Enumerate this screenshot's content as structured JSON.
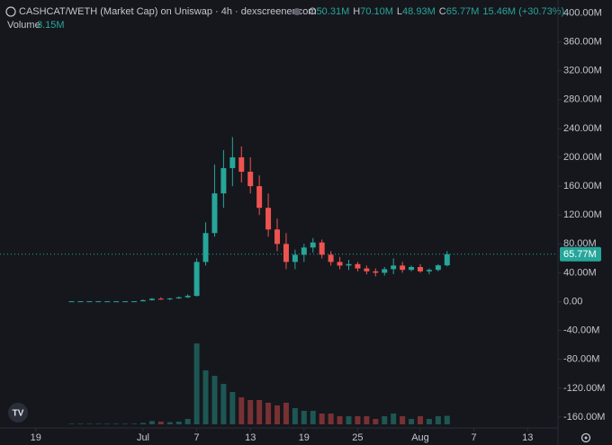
{
  "chart_data": {
    "type": "candlestick",
    "title": "CASHCAT/WETH (Market Cap) on Uniswap · 4h · dexscreener.com",
    "ohlc_header": [
      {
        "label": "O",
        "value": "50.31M"
      },
      {
        "label": "H",
        "value": "70.10M"
      },
      {
        "label": "L",
        "value": "48.93M"
      },
      {
        "label": "C",
        "value": "65.77M"
      }
    ],
    "change_label": "15.46M (+30.73%)",
    "volume_title": "Volume",
    "volume_label": "3.15M",
    "up_color": "#26a69a",
    "down_color": "#ef5350",
    "x": [
      23,
      24,
      25,
      26,
      27,
      28,
      29,
      30,
      31,
      32,
      33,
      34,
      35,
      36,
      37,
      38,
      39,
      40,
      41,
      42,
      43,
      44,
      45,
      46,
      47,
      48,
      49,
      50,
      51,
      52,
      53,
      54,
      55,
      56,
      57,
      58,
      59,
      60,
      61,
      62,
      63,
      64,
      65
    ],
    "open": [
      0.5,
      0.5,
      0.5,
      0.5,
      0.5,
      0.5,
      0.5,
      0.5,
      0.5,
      2,
      4,
      3.5,
      4.5,
      6,
      8,
      55,
      95,
      150,
      185,
      200,
      180,
      160,
      130,
      100,
      80,
      55,
      65,
      75,
      82,
      65,
      55,
      50,
      52,
      46,
      42,
      40,
      45,
      50,
      44,
      48,
      42,
      44,
      50.31
    ],
    "high": [
      0.6,
      0.6,
      0.6,
      0.6,
      0.6,
      0.6,
      0.6,
      0.6,
      3,
      5,
      6,
      5,
      7,
      10,
      60,
      110,
      190,
      210,
      228,
      215,
      200,
      175,
      150,
      115,
      95,
      72,
      80,
      88,
      86,
      70,
      62,
      58,
      55,
      50,
      46,
      48,
      60,
      55,
      50,
      52,
      46,
      52,
      70.1
    ],
    "low": [
      0.4,
      0.4,
      0.4,
      0.4,
      0.4,
      0.4,
      0.4,
      0.4,
      0.4,
      1.5,
      3,
      2,
      4,
      5,
      7,
      50,
      90,
      130,
      160,
      165,
      150,
      120,
      90,
      70,
      45,
      45,
      55,
      68,
      60,
      50,
      45,
      44,
      42,
      38,
      35,
      36,
      38,
      40,
      42,
      40,
      38,
      42,
      48.93
    ],
    "close": [
      0.5,
      0.5,
      0.5,
      0.5,
      0.5,
      0.5,
      0.5,
      0.5,
      2,
      4,
      3.5,
      4.5,
      6,
      8,
      55,
      95,
      150,
      185,
      200,
      180,
      160,
      130,
      100,
      80,
      55,
      65,
      75,
      82,
      65,
      55,
      50,
      52,
      46,
      42,
      40,
      45,
      50,
      44,
      48,
      42,
      44,
      50.31,
      65.77
    ],
    "volume": [
      0.2,
      0.2,
      0.2,
      0.2,
      0.2,
      0.2,
      0.2,
      0.2,
      0.5,
      1.2,
      1,
      0.8,
      1,
      2,
      30,
      20,
      18,
      15,
      12,
      10,
      9,
      9,
      8,
      7,
      8,
      6,
      5,
      5,
      4,
      4,
      3,
      3,
      3,
      3,
      2,
      3,
      4,
      3,
      2,
      3,
      2,
      3,
      3.15
    ],
    "volume_lim": [
      0,
      40
    ],
    "last_price": 65.77,
    "last_price_label": "65.77M",
    "xlim": [
      15,
      77.4
    ],
    "ylim": [
      -175,
      418
    ],
    "xticks": [
      19,
      {
        "value": 31,
        "label": "Jul"
      },
      {
        "value": 37,
        "label": "7"
      },
      {
        "value": 43,
        "label": "13"
      },
      {
        "value": 49,
        "label": "19"
      },
      {
        "value": 55,
        "label": "25"
      },
      {
        "value": 62,
        "label": "Aug"
      },
      {
        "value": 68,
        "label": "7"
      },
      {
        "value": 74,
        "label": "13"
      }
    ],
    "yticks": [
      {
        "value": 400,
        "label": "400.00M"
      },
      {
        "value": 360,
        "label": "360.00M"
      },
      {
        "value": 320,
        "label": "320.00M"
      },
      {
        "value": 280,
        "label": "280.00M"
      },
      {
        "value": 240,
        "label": "240.00M"
      },
      {
        "value": 200,
        "label": "200.00M"
      },
      {
        "value": 160,
        "label": "160.00M"
      },
      {
        "value": 120,
        "label": "120.00M"
      },
      {
        "value": 80,
        "label": "80.00M"
      },
      {
        "value": 40,
        "label": "40.00M"
      },
      {
        "value": 0,
        "label": "0.00"
      },
      {
        "value": -40,
        "label": "-40.00M"
      },
      {
        "value": -80,
        "label": "-80.00M"
      },
      {
        "value": -120,
        "label": "-120.00M"
      },
      {
        "value": -160,
        "label": "-160.00M"
      }
    ]
  }
}
